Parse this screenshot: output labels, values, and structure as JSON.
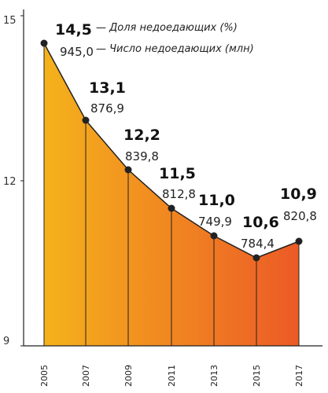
{
  "chart_data": {
    "type": "area",
    "x": [
      "2005",
      "2007",
      "2009",
      "2011",
      "2013",
      "2015",
      "2017"
    ],
    "series": [
      {
        "name": "— Доля недоедающих (%)",
        "values": [
          14.5,
          13.1,
          12.2,
          11.5,
          11.0,
          10.6,
          10.9
        ],
        "labels": [
          "14,5",
          "13,1",
          "12,2",
          "11,5",
          "11,0",
          "10,6",
          "10,9"
        ]
      },
      {
        "name": "— Число недоедающих (млн)",
        "values": [
          945.0,
          876.9,
          839.8,
          812.8,
          749.9,
          784.4,
          820.8
        ],
        "labels": [
          "945,0",
          "876,9",
          "839,8",
          "812,8",
          "749,9",
          "784,4",
          "820,8"
        ]
      }
    ],
    "yticks": [
      "15",
      "12",
      "9"
    ],
    "ylim": [
      9,
      15
    ],
    "colors": {
      "gradient_start": "#f5b21c",
      "gradient_end": "#ec5a26",
      "line": "#222222"
    },
    "grid": false
  }
}
